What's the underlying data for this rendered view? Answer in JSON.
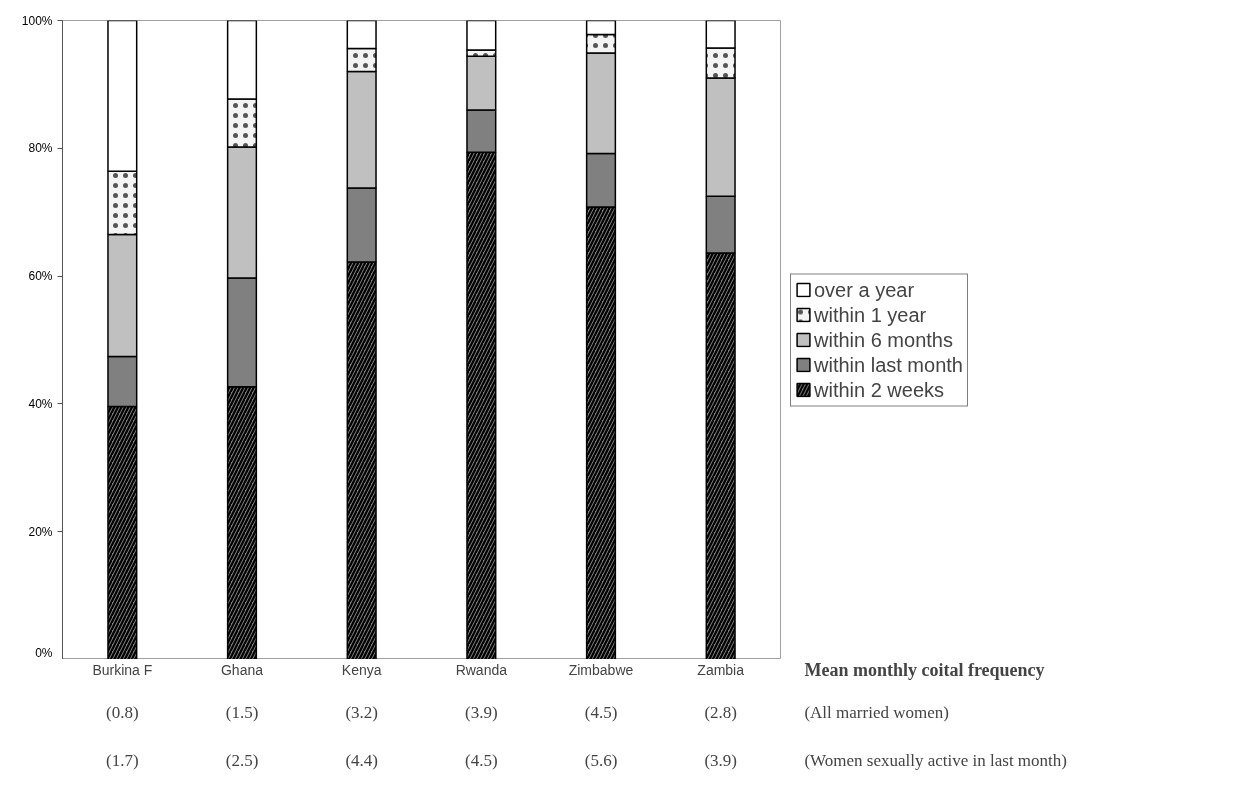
{
  "chart_data": {
    "type": "bar",
    "stacked": true,
    "categories": [
      "Burkina F",
      "Ghana",
      "Kenya",
      "Rwanda",
      "Zimbabwe",
      "Zambia"
    ],
    "series": [
      {
        "name": "within 2 weeks",
        "color": "#808080",
        "values": [
          39.6,
          42.7,
          62.2,
          79.4,
          70.8,
          63.6
        ]
      },
      {
        "name": "within last month",
        "color": "#808080",
        "values": [
          7.8,
          17.0,
          11.6,
          6.6,
          8.4,
          8.9
        ]
      },
      {
        "name": "within 6 months",
        "color": "#c0c0c0",
        "values": [
          19.1,
          20.5,
          18.2,
          8.4,
          15.7,
          18.5
        ]
      },
      {
        "name": "within 1 year",
        "color": "#f4f4f4",
        "values": [
          9.9,
          7.5,
          3.6,
          1.0,
          2.9,
          4.7
        ]
      },
      {
        "name": "over a year",
        "color": "#ffffff",
        "values": [
          23.6,
          12.3,
          4.4,
          4.6,
          2.2,
          4.3
        ]
      }
    ],
    "ylim": [
      0,
      100
    ],
    "yticks": [
      {
        "value": 0,
        "label": "0%"
      },
      {
        "value": 20,
        "label": "20%"
      },
      {
        "value": 40,
        "label": "40%"
      },
      {
        "value": 60,
        "label": "60%"
      },
      {
        "value": 80,
        "label": "80%"
      },
      {
        "value": 100,
        "label": "100%"
      }
    ],
    "grid": false,
    "legend": "right",
    "annotations": [
      "Mean monthly coital frequency",
      "(All married women)",
      "(0.8)",
      "(1.5)",
      "(3.2)",
      "(3.9)",
      "(4.5)",
      "(2.8)",
      "(Women sexually active in last month)",
      "(1.7)",
      "(2.5)",
      "(4.4)",
      "(4.5)",
      "(5.6)",
      "(3.9)"
    ]
  }
}
